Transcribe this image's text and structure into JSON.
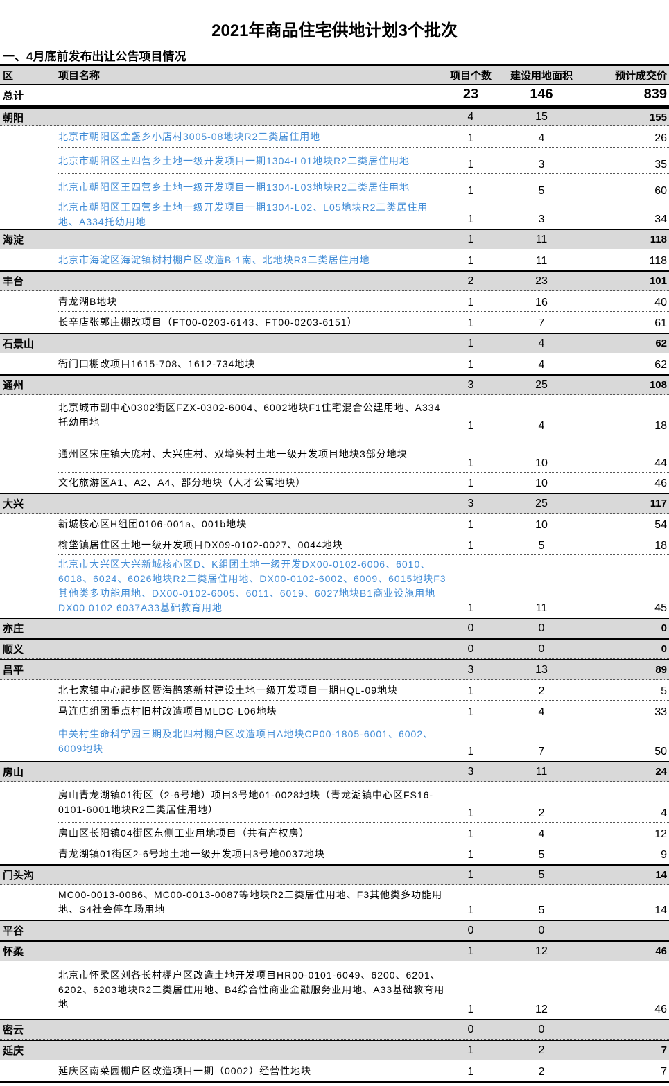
{
  "title": "2021年商品住宅供地计划3个批次",
  "subtitle": "一、4月底前发布出让公告项目情况",
  "colors": {
    "link": "#3f8bd6",
    "group_bg": "#d9d9d9"
  },
  "header": {
    "district": "区",
    "name": "项目名称",
    "count": "项目个数",
    "area": "建设用地面积",
    "price": "预计成交价"
  },
  "total": {
    "label": "总计",
    "count": "23",
    "area": "146",
    "price": "839"
  },
  "rows": [
    {
      "type": "group",
      "district": "朝阳",
      "count": "4",
      "area": "15",
      "price": "155"
    },
    {
      "type": "item",
      "link": true,
      "name": "北京市朝阳区金盏乡小店村3005-08地块R2二类居住用地",
      "count": "1",
      "area": "4",
      "price": "26"
    },
    {
      "type": "item",
      "link": true,
      "name": "北京市朝阳区王四营乡土地一级开发项目一期1304-L01地块R2二类居住用地",
      "count": "1",
      "area": "3",
      "price": "35"
    },
    {
      "type": "item",
      "link": true,
      "name": "北京市朝阳区王四营乡土地一级开发项目一期1304-L03地块R2二类居住用地",
      "count": "1",
      "area": "5",
      "price": "60"
    },
    {
      "type": "item",
      "link": true,
      "name": "北京市朝阳区王四营乡土地一级开发项目一期1304-L02、L05地块R2二类居住用地、A334托幼用地",
      "count": "1",
      "area": "3",
      "price": "34"
    },
    {
      "type": "group",
      "district": "海淀",
      "count": "1",
      "area": "11",
      "price": "118"
    },
    {
      "type": "item",
      "link": true,
      "name": "北京市海淀区海淀镇树村棚户区改造B-1南、北地块R3二类居住用地",
      "count": "1",
      "area": "11",
      "price": "118"
    },
    {
      "type": "group",
      "district": "丰台",
      "count": "2",
      "area": "23",
      "price": "101"
    },
    {
      "type": "item",
      "link": false,
      "name": "青龙湖B地块",
      "count": "1",
      "area": "16",
      "price": "40"
    },
    {
      "type": "item",
      "link": false,
      "name": "长辛店张郭庄棚改项目（FT00-0203-6143、FT00-0203-6151）",
      "count": "1",
      "area": "7",
      "price": "61"
    },
    {
      "type": "group",
      "district": "石景山",
      "count": "1",
      "area": "4",
      "price": "62"
    },
    {
      "type": "item",
      "link": false,
      "name": "衙门口棚改项目1615-708、1612-734地块",
      "count": "1",
      "area": "4",
      "price": "62"
    },
    {
      "type": "group",
      "district": "通州",
      "count": "3",
      "area": "25",
      "price": "108"
    },
    {
      "type": "item",
      "link": false,
      "name": "北京城市副中心0302街区FZX-0302-6004、6002地块F1住宅混合公建用地、A334托幼用地",
      "count": "1",
      "area": "4",
      "price": "18"
    },
    {
      "type": "item",
      "link": false,
      "name": "通州区宋庄镇大庞村、大兴庄村、双埠头村土地一级开发项目地块3部分地块",
      "count": "1",
      "area": "10",
      "price": "44"
    },
    {
      "type": "item",
      "link": false,
      "name": "文化旅游区A1、A2、A4、部分地块（人才公寓地块）",
      "count": "1",
      "area": "10",
      "price": "46"
    },
    {
      "type": "group",
      "district": "大兴",
      "count": "3",
      "area": "25",
      "price": "117"
    },
    {
      "type": "item",
      "link": false,
      "name": "新城核心区H组团0106-001a、001b地块",
      "count": "1",
      "area": "10",
      "price": "54"
    },
    {
      "type": "item",
      "link": false,
      "name": "榆垡镇居住区土地一级开发项目DX09-0102-0027、0044地块",
      "count": "1",
      "area": "5",
      "price": "18"
    },
    {
      "type": "item",
      "link": true,
      "name": "北京市大兴区大兴新城核心区D、K组团土地一级开发DX00-0102-6006、6010、6018、6024、6026地块R2二类居住用地、DX00-0102-6002、6009、6015地块F3其他类多功能用地、DX00-0102-6005、6011、6019、6027地块B1商业设施用地 DX00 0102 6037A33基础教育用地",
      "count": "1",
      "area": "11",
      "price": "45"
    },
    {
      "type": "group",
      "district": "亦庄",
      "count": "0",
      "area": "0",
      "price": "0"
    },
    {
      "type": "group",
      "district": "顺义",
      "count": "0",
      "area": "0",
      "price": "0"
    },
    {
      "type": "group",
      "district": "昌平",
      "count": "3",
      "area": "13",
      "price": "89"
    },
    {
      "type": "item",
      "link": false,
      "name": "北七家镇中心起步区暨海鹊落新村建设土地一级开发项目一期HQL-09地块",
      "count": "1",
      "area": "2",
      "price": "5"
    },
    {
      "type": "item",
      "link": false,
      "name": "马连店组团重点村旧村改造项目MLDC-L06地块",
      "count": "1",
      "area": "4",
      "price": "33"
    },
    {
      "type": "item",
      "link": true,
      "name": "中关村生命科学园三期及北四村棚户区改造项目A地块CP00-1805-6001、6002、6009地块",
      "count": "1",
      "area": "7",
      "price": "50"
    },
    {
      "type": "group",
      "district": "房山",
      "count": "3",
      "area": "11",
      "price": "24"
    },
    {
      "type": "item",
      "link": false,
      "name": "房山青龙湖镇01街区（2-6号地）项目3号地01-0028地块（青龙湖镇中心区FS16-0101-6001地块R2二类居住用地）",
      "count": "1",
      "area": "2",
      "price": "4"
    },
    {
      "type": "item",
      "link": false,
      "name": "房山区长阳镇04街区东侧工业用地项目（共有产权房）",
      "count": "1",
      "area": "4",
      "price": "12"
    },
    {
      "type": "item",
      "link": false,
      "name": "青龙湖镇01街区2-6号地土地一级开发项目3号地0037地块",
      "count": "1",
      "area": "5",
      "price": "9"
    },
    {
      "type": "group",
      "district": "门头沟",
      "count": "1",
      "area": "5",
      "price": "14"
    },
    {
      "type": "item",
      "link": false,
      "name": "MC00-0013-0086、MC00-0013-0087等地块R2二类居住用地、F3其他类多功能用地、S4社会停车场用地",
      "count": "1",
      "area": "5",
      "price": "14"
    },
    {
      "type": "group",
      "district": "平谷",
      "count": "0",
      "area": "0",
      "price": ""
    },
    {
      "type": "group",
      "district": "怀柔",
      "count": "1",
      "area": "12",
      "price": "46"
    },
    {
      "type": "item",
      "link": false,
      "name": "北京市怀柔区刘各长村棚户区改造土地开发项目HR00-0101-6049、6200、6201、6202、6203地块R2二类居住用地、B4综合性商业金融服务业用地、A33基础教育用地",
      "count": "1",
      "area": "12",
      "price": "46"
    },
    {
      "type": "group",
      "district": "密云",
      "count": "0",
      "area": "0",
      "price": ""
    },
    {
      "type": "group",
      "district": "延庆",
      "count": "1",
      "area": "2",
      "price": "7"
    },
    {
      "type": "item",
      "link": false,
      "name": "延庆区南菜园棚户区改造项目一期（0002）经营性地块",
      "count": "1",
      "area": "2",
      "price": "7"
    }
  ]
}
